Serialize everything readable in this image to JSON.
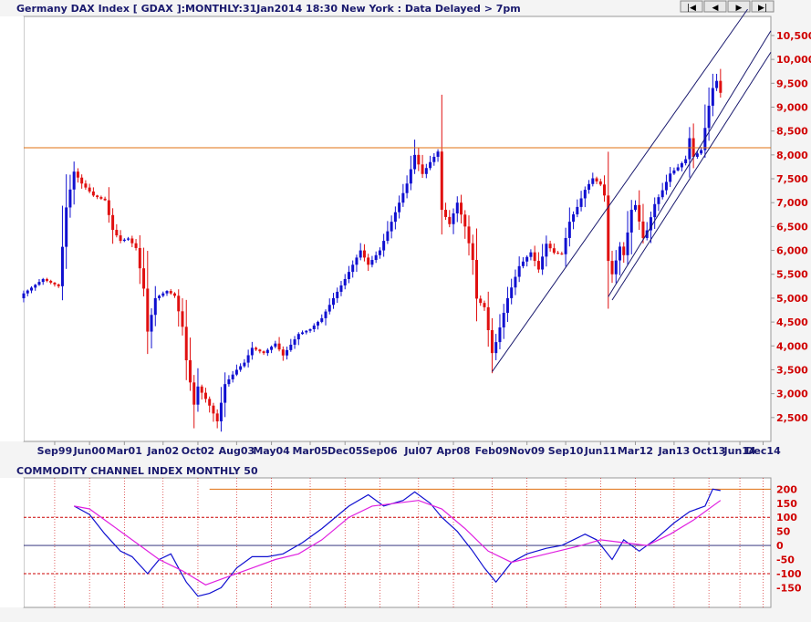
{
  "header": {
    "title": "Germany DAX Index [ GDAX ]:MONTHLY:31Jan2014 18:30 New York : Data Delayed > 7pm"
  },
  "nav_buttons": [
    {
      "name": "first-button",
      "icon": "first-icon",
      "glyph": "|◀"
    },
    {
      "name": "prev-button",
      "icon": "prev-icon",
      "glyph": "◀"
    },
    {
      "name": "next-button",
      "icon": "next-icon",
      "glyph": "▶"
    },
    {
      "name": "last-button",
      "icon": "last-icon",
      "glyph": "▶|"
    }
  ],
  "colors": {
    "up_candle": "#1010d0",
    "down_candle": "#e01010",
    "channel": "#1a1a6e",
    "resistance": "#e07010",
    "cci_line": "#1010d0",
    "cci_signal": "#e020e0",
    "cci_level": "#cc0000",
    "axis_text": "#d00000",
    "background": "#ffffff"
  },
  "chart_data": [
    {
      "type": "candlestick",
      "title": "Germany DAX Index [ GDAX ]:MONTHLY:31Jan2014 18:30 New York : Data Delayed > 7pm",
      "interval": "monthly",
      "x_range": [
        "1999-01",
        "2015-02"
      ],
      "ylim": [
        2000,
        10900
      ],
      "y_ticks": [
        "2,500",
        "3,000",
        "3,500",
        "4,000",
        "4,500",
        "5,000",
        "5,500",
        "6,000",
        "6,500",
        "7,000",
        "7,500",
        "8,000",
        "8,500",
        "9,000",
        "9,500",
        "10,000",
        "10,500"
      ],
      "x_ticks": [
        {
          "label": "Sep99",
          "date": "1999-09"
        },
        {
          "label": "Jun00",
          "date": "2000-06"
        },
        {
          "label": "Mar01",
          "date": "2001-03"
        },
        {
          "label": "Jan02",
          "date": "2002-01"
        },
        {
          "label": "Oct02",
          "date": "2002-10"
        },
        {
          "label": "Aug03",
          "date": "2003-08"
        },
        {
          "label": "May04",
          "date": "2004-05"
        },
        {
          "label": "Mar05",
          "date": "2005-03"
        },
        {
          "label": "Dec05",
          "date": "2005-12"
        },
        {
          "label": "Sep06",
          "date": "2006-09"
        },
        {
          "label": "Jul07",
          "date": "2007-07"
        },
        {
          "label": "Apr08",
          "date": "2008-04"
        },
        {
          "label": "Feb09",
          "date": "2009-02"
        },
        {
          "label": "Nov09",
          "date": "2009-11"
        },
        {
          "label": "Sep10",
          "date": "2010-09"
        },
        {
          "label": "Jun11",
          "date": "2011-06"
        },
        {
          "label": "Mar12",
          "date": "2012-03"
        },
        {
          "label": "Jan13",
          "date": "2013-01"
        },
        {
          "label": "Oct13",
          "date": "2013-10"
        },
        {
          "label": "Jun14",
          "date": "2014-06"
        },
        {
          "label": "Dec14",
          "date": "2014-12"
        }
      ],
      "close_anchors": [
        [
          "1999-01",
          5100
        ],
        [
          "1999-06",
          5400
        ],
        [
          "1999-10",
          5250
        ],
        [
          "1999-12",
          6900
        ],
        [
          "2000-02",
          7650
        ],
        [
          "2000-04",
          7400
        ],
        [
          "2000-07",
          7150
        ],
        [
          "2000-10",
          7050
        ],
        [
          "2000-12",
          6430
        ],
        [
          "2001-02",
          6200
        ],
        [
          "2001-04",
          6250
        ],
        [
          "2001-06",
          6050
        ],
        [
          "2001-08",
          5200
        ],
        [
          "2001-09",
          4300
        ],
        [
          "2001-11",
          5000
        ],
        [
          "2002-02",
          5150
        ],
        [
          "2002-04",
          5050
        ],
        [
          "2002-06",
          4400
        ],
        [
          "2002-07",
          3700
        ],
        [
          "2002-09",
          2770
        ],
        [
          "2002-10",
          3150
        ],
        [
          "2002-12",
          2890
        ],
        [
          "2003-01",
          2750
        ],
        [
          "2003-03",
          2420
        ],
        [
          "2003-05",
          3200
        ],
        [
          "2003-08",
          3500
        ],
        [
          "2003-10",
          3650
        ],
        [
          "2003-12",
          3960
        ],
        [
          "2004-03",
          3850
        ],
        [
          "2004-06",
          4050
        ],
        [
          "2004-08",
          3800
        ],
        [
          "2004-12",
          4250
        ],
        [
          "2005-03",
          4350
        ],
        [
          "2005-06",
          4580
        ],
        [
          "2005-09",
          5000
        ],
        [
          "2005-12",
          5400
        ],
        [
          "2006-04",
          6000
        ],
        [
          "2006-06",
          5700
        ],
        [
          "2006-09",
          6000
        ],
        [
          "2006-12",
          6600
        ],
        [
          "2007-04",
          7400
        ],
        [
          "2007-06",
          8000
        ],
        [
          "2007-08",
          7600
        ],
        [
          "2007-10",
          7850
        ],
        [
          "2007-12",
          8070
        ],
        [
          "2008-01",
          6850
        ],
        [
          "2008-03",
          6550
        ],
        [
          "2008-05",
          7000
        ],
        [
          "2008-07",
          6500
        ],
        [
          "2008-09",
          5800
        ],
        [
          "2008-10",
          4990
        ],
        [
          "2008-12",
          4810
        ],
        [
          "2009-02",
          3850
        ],
        [
          "2009-03",
          4080
        ],
        [
          "2009-06",
          5000
        ],
        [
          "2009-09",
          5670
        ],
        [
          "2009-12",
          5960
        ],
        [
          "2010-02",
          5600
        ],
        [
          "2010-04",
          6140
        ],
        [
          "2010-06",
          5950
        ],
        [
          "2010-08",
          5920
        ],
        [
          "2010-10",
          6600
        ],
        [
          "2010-12",
          6910
        ],
        [
          "2011-02",
          7270
        ],
        [
          "2011-04",
          7510
        ],
        [
          "2011-06",
          7380
        ],
        [
          "2011-07",
          7150
        ],
        [
          "2011-08",
          5780
        ],
        [
          "2011-09",
          5500
        ],
        [
          "2011-11",
          6080
        ],
        [
          "2011-12",
          5900
        ],
        [
          "2012-02",
          6850
        ],
        [
          "2012-03",
          6950
        ],
        [
          "2012-05",
          6260
        ],
        [
          "2012-06",
          6420
        ],
        [
          "2012-08",
          6970
        ],
        [
          "2012-10",
          7260
        ],
        [
          "2012-12",
          7610
        ],
        [
          "2013-02",
          7740
        ],
        [
          "2013-04",
          7910
        ],
        [
          "2013-05",
          8350
        ],
        [
          "2013-06",
          7960
        ],
        [
          "2013-08",
          8100
        ],
        [
          "2013-10",
          9030
        ],
        [
          "2013-11",
          9400
        ],
        [
          "2013-12",
          9550
        ],
        [
          "2014-01",
          9300
        ]
      ],
      "overlays": {
        "resistance": {
          "value": 8150
        },
        "channel_lines": [
          {
            "start": [
              "2009-02",
              3460
            ],
            "end": [
              "2014-08",
              11050
            ]
          },
          {
            "start": [
              "2011-08",
              5030
            ],
            "end": [
              "2015-02",
              10600
            ]
          },
          {
            "start": [
              "2011-09",
              4960
            ],
            "end": [
              "2015-02",
              10150
            ]
          }
        ]
      }
    },
    {
      "type": "line",
      "title": "COMMODITY CHANNEL INDEX MONTHLY 50",
      "ylim": [
        -220,
        240
      ],
      "y_ticks": [
        200,
        150,
        100,
        50,
        0,
        -50,
        -100,
        -150
      ],
      "levels": [
        200,
        100,
        0,
        -100
      ],
      "series": [
        {
          "key": "cci",
          "anchors": [
            [
              "2000-02",
              140
            ],
            [
              "2000-06",
              110
            ],
            [
              "2000-10",
              40
            ],
            [
              "2001-02",
              -20
            ],
            [
              "2001-05",
              -40
            ],
            [
              "2001-09",
              -100
            ],
            [
              "2001-12",
              -50
            ],
            [
              "2002-03",
              -30
            ],
            [
              "2002-05",
              -80
            ],
            [
              "2002-07",
              -130
            ],
            [
              "2002-10",
              -180
            ],
            [
              "2003-01",
              -170
            ],
            [
              "2003-04",
              -150
            ],
            [
              "2003-08",
              -80
            ],
            [
              "2003-12",
              -40
            ],
            [
              "2004-04",
              -40
            ],
            [
              "2004-08",
              -30
            ],
            [
              "2005-01",
              10
            ],
            [
              "2005-06",
              60
            ],
            [
              "2006-01",
              140
            ],
            [
              "2006-06",
              180
            ],
            [
              "2006-10",
              140
            ],
            [
              "2007-03",
              160
            ],
            [
              "2007-06",
              190
            ],
            [
              "2007-10",
              150
            ],
            [
              "2008-01",
              100
            ],
            [
              "2008-05",
              50
            ],
            [
              "2008-09",
              -20
            ],
            [
              "2008-12",
              -80
            ],
            [
              "2009-03",
              -130
            ],
            [
              "2009-07",
              -60
            ],
            [
              "2009-11",
              -30
            ],
            [
              "2010-04",
              -10
            ],
            [
              "2010-08",
              0
            ],
            [
              "2011-02",
              40
            ],
            [
              "2011-05",
              20
            ],
            [
              "2011-09",
              -50
            ],
            [
              "2011-12",
              20
            ],
            [
              "2012-04",
              -20
            ],
            [
              "2012-08",
              20
            ],
            [
              "2013-01",
              80
            ],
            [
              "2013-05",
              120
            ],
            [
              "2013-09",
              140
            ],
            [
              "2013-11",
              200
            ],
            [
              "2014-01",
              195
            ]
          ]
        },
        {
          "key": "signal",
          "anchors": [
            [
              "2000-02",
              140
            ],
            [
              "2000-06",
              130
            ],
            [
              "2000-12",
              70
            ],
            [
              "2001-06",
              10
            ],
            [
              "2001-12",
              -50
            ],
            [
              "2002-06",
              -90
            ],
            [
              "2002-12",
              -140
            ],
            [
              "2003-04",
              -120
            ],
            [
              "2003-12",
              -80
            ],
            [
              "2004-06",
              -50
            ],
            [
              "2004-12",
              -30
            ],
            [
              "2005-06",
              20
            ],
            [
              "2006-01",
              100
            ],
            [
              "2006-07",
              140
            ],
            [
              "2007-01",
              150
            ],
            [
              "2007-07",
              160
            ],
            [
              "2008-01",
              130
            ],
            [
              "2008-07",
              60
            ],
            [
              "2009-01",
              -20
            ],
            [
              "2009-07",
              -60
            ],
            [
              "2010-01",
              -40
            ],
            [
              "2010-07",
              -20
            ],
            [
              "2011-01",
              0
            ],
            [
              "2011-06",
              20
            ],
            [
              "2011-12",
              10
            ],
            [
              "2012-06",
              0
            ],
            [
              "2012-12",
              40
            ],
            [
              "2013-06",
              90
            ],
            [
              "2014-01",
              160
            ]
          ]
        }
      ]
    }
  ]
}
